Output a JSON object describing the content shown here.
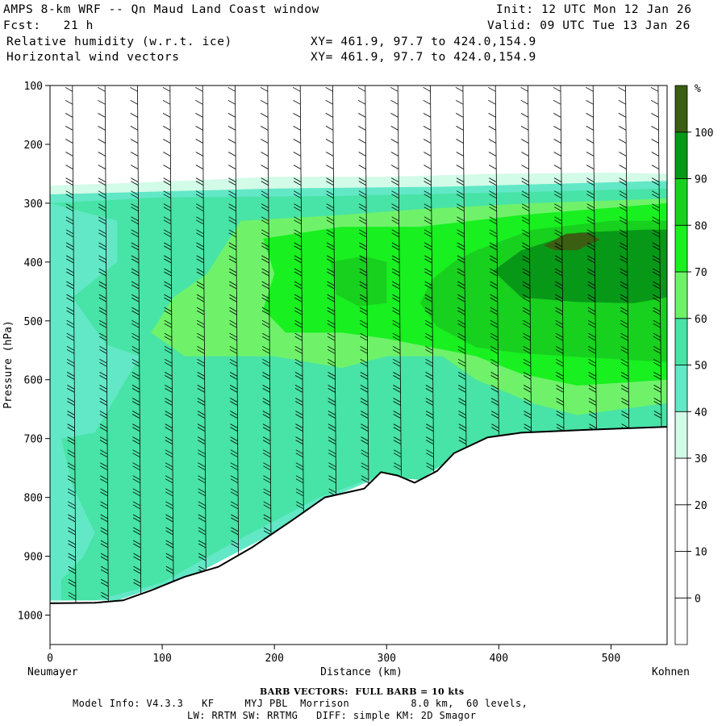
{
  "header": {
    "title": "AMPS 8-km WRF -- Qn Maud Land Coast window",
    "init": "Init: 12 UTC Mon 12 Jan 26",
    "fcst": "Fcst:   21 h",
    "valid": "Valid: 09 UTC Tue 13 Jan 26",
    "field1": "Relative humidity (w.r.t. ice)",
    "field1_xy": "XY= 461.9, 97.7 to 424.0,154.9",
    "field2": "Horizontal wind vectors",
    "field2_xy": "XY= 461.9, 97.7 to 424.0,154.9"
  },
  "footer": {
    "barb": "BARB VECTORS:  FULL BARB = 10 kts",
    "line1": "Model Info: V4.3.3   KF     MYJ PBL  Morrison          8.0 km,  60 levels,",
    "line2": "LW: RRTM SW: RRTMG   DIFF: simple KM: 2D Smagor"
  },
  "chart_data": {
    "type": "heatmap",
    "title": "Relative humidity (w.r.t. ice)",
    "xlabel": "Distance (km)",
    "ylabel": "Pressure (hPa)",
    "x_left_label": "Neumayer",
    "x_right_label": "Kohnen",
    "xlim": [
      0,
      550
    ],
    "ylim": [
      1050,
      100
    ],
    "x_ticks": [
      0,
      100,
      200,
      300,
      400,
      500
    ],
    "y_ticks": [
      100,
      200,
      300,
      400,
      500,
      600,
      700,
      800,
      900,
      1000
    ],
    "colorbar": {
      "unit": "%",
      "levels": [
        0,
        10,
        20,
        30,
        40,
        50,
        60,
        70,
        80,
        90,
        100
      ],
      "colors": [
        "#ffffff",
        "#ffffff",
        "#ffffff",
        "#ffffff",
        "#d2fbe8",
        "#62e8c6",
        "#48e3a6",
        "#6ff26a",
        "#18f020",
        "#18d01e",
        "#089818",
        "#3a5e12"
      ]
    },
    "terrain_surface_hPa": [
      {
        "x": 0,
        "p": 980
      },
      {
        "x": 40,
        "p": 979
      },
      {
        "x": 65,
        "p": 975
      },
      {
        "x": 90,
        "p": 958
      },
      {
        "x": 120,
        "p": 935
      },
      {
        "x": 150,
        "p": 918
      },
      {
        "x": 180,
        "p": 885
      },
      {
        "x": 215,
        "p": 840
      },
      {
        "x": 245,
        "p": 800
      },
      {
        "x": 280,
        "p": 785
      },
      {
        "x": 295,
        "p": 757
      },
      {
        "x": 310,
        "p": 763
      },
      {
        "x": 325,
        "p": 775
      },
      {
        "x": 345,
        "p": 755
      },
      {
        "x": 360,
        "p": 725
      },
      {
        "x": 390,
        "p": 698
      },
      {
        "x": 420,
        "p": 690
      },
      {
        "x": 480,
        "p": 685
      },
      {
        "x": 550,
        "p": 680
      }
    ],
    "rh_regions": [
      {
        "level": 40,
        "polygon": [
          [
            0,
            270
          ],
          [
            80,
            265
          ],
          [
            200,
            255
          ],
          [
            300,
            255
          ],
          [
            400,
            250
          ],
          [
            500,
            248
          ],
          [
            550,
            250
          ],
          [
            550,
            680
          ],
          [
            420,
            690
          ],
          [
            360,
            725
          ],
          [
            300,
            757
          ],
          [
            200,
            855
          ],
          [
            100,
            945
          ],
          [
            0,
            980
          ]
        ]
      },
      {
        "level": 50,
        "polygon": [
          [
            0,
            285
          ],
          [
            200,
            275
          ],
          [
            350,
            272
          ],
          [
            550,
            262
          ],
          [
            550,
            680
          ],
          [
            430,
            690
          ],
          [
            360,
            728
          ],
          [
            300,
            760
          ],
          [
            250,
            800
          ],
          [
            200,
            860
          ],
          [
            130,
            930
          ],
          [
            60,
            975
          ],
          [
            0,
            975
          ]
        ]
      },
      {
        "level": 60,
        "polygon": [
          [
            0,
            300
          ],
          [
            100,
            290
          ],
          [
            250,
            288
          ],
          [
            400,
            282
          ],
          [
            550,
            275
          ],
          [
            550,
            678
          ],
          [
            430,
            688
          ],
          [
            380,
            705
          ],
          [
            330,
            770
          ],
          [
            290,
            765
          ],
          [
            240,
            800
          ],
          [
            160,
            880
          ],
          [
            100,
            945
          ],
          [
            40,
            975
          ],
          [
            10,
            975
          ],
          [
            10,
            940
          ],
          [
            30,
            900
          ],
          [
            40,
            860
          ],
          [
            20,
            780
          ],
          [
            10,
            700
          ],
          [
            40,
            690
          ],
          [
            80,
            560
          ],
          [
            50,
            540
          ],
          [
            20,
            460
          ],
          [
            60,
            400
          ],
          [
            60,
            330
          ]
        ]
      },
      {
        "level": 70,
        "polygon": [
          [
            170,
            330
          ],
          [
            260,
            320
          ],
          [
            330,
            310
          ],
          [
            430,
            300
          ],
          [
            550,
            292
          ],
          [
            550,
            640
          ],
          [
            470,
            660
          ],
          [
            430,
            640
          ],
          [
            380,
            600
          ],
          [
            350,
            560
          ],
          [
            300,
            560
          ],
          [
            260,
            580
          ],
          [
            200,
            560
          ],
          [
            120,
            560
          ],
          [
            90,
            520
          ],
          [
            110,
            460
          ],
          [
            140,
            420
          ]
        ]
      },
      {
        "level": 80,
        "polygon": [
          [
            190,
            360
          ],
          [
            260,
            340
          ],
          [
            330,
            340
          ],
          [
            420,
            320
          ],
          [
            550,
            300
          ],
          [
            550,
            600
          ],
          [
            470,
            610
          ],
          [
            420,
            590
          ],
          [
            380,
            560
          ],
          [
            340,
            545
          ],
          [
            300,
            530
          ],
          [
            260,
            520
          ],
          [
            210,
            520
          ],
          [
            190,
            480
          ],
          [
            200,
            420
          ]
        ]
      },
      {
        "level": 90,
        "polygon": [
          [
            250,
            400
          ],
          [
            280,
            390
          ],
          [
            300,
            400
          ],
          [
            300,
            470
          ],
          [
            275,
            475
          ],
          [
            255,
            455
          ]
        ]
      },
      {
        "level": 90,
        "polygon": [
          [
            330,
            470
          ],
          [
            340,
            430
          ],
          [
            360,
            400
          ],
          [
            380,
            380
          ],
          [
            430,
            345
          ],
          [
            500,
            330
          ],
          [
            550,
            330
          ],
          [
            550,
            570
          ],
          [
            460,
            560
          ],
          [
            420,
            555
          ],
          [
            380,
            545
          ],
          [
            345,
            510
          ]
        ]
      },
      {
        "level": 100,
        "polygon": [
          [
            395,
            415
          ],
          [
            420,
            380
          ],
          [
            470,
            350
          ],
          [
            530,
            345
          ],
          [
            550,
            345
          ],
          [
            550,
            460
          ],
          [
            520,
            470
          ],
          [
            470,
            468
          ],
          [
            420,
            460
          ]
        ]
      },
      {
        "level": 110,
        "polygon": [
          [
            440,
            372
          ],
          [
            460,
            352
          ],
          [
            480,
            350
          ],
          [
            490,
            362
          ],
          [
            470,
            380
          ],
          [
            450,
            380
          ]
        ]
      }
    ]
  }
}
